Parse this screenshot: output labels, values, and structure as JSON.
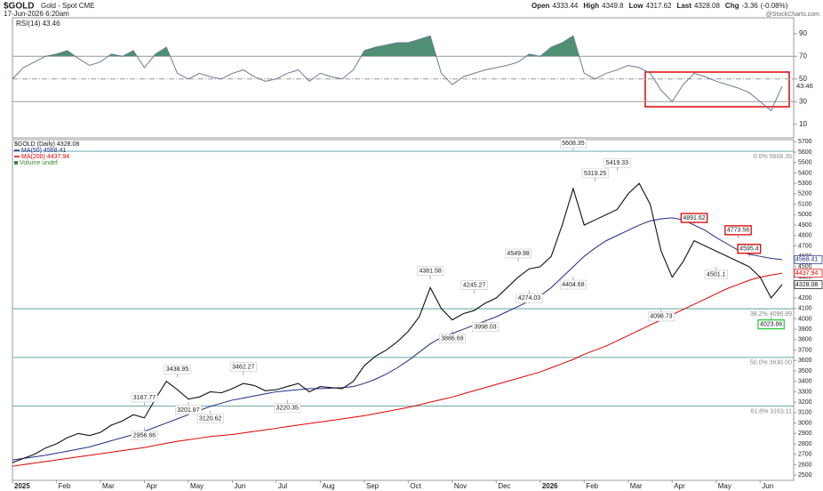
{
  "header": {
    "symbol": "$GOLD",
    "name": "Gold - Spot CME",
    "date": "17-Jun-2026 6:20am",
    "quote": [
      {
        "label": "Open",
        "value": 4333.44
      },
      {
        "label": "High",
        "value": 4349.8
      },
      {
        "label": "Low",
        "value": 4317.62
      },
      {
        "label": "Last",
        "value": 4328.08
      },
      {
        "label": "Chg",
        "value": -3.36
      }
    ],
    "change_pct": "(-0.08%)",
    "watermark": "@StockCharts.com"
  },
  "chart_data": [
    {
      "type": "line",
      "name": "RSI(14)",
      "color": "#6b7a94",
      "fill_above": 70,
      "fill_color": "#4f8f74",
      "values": [
        50,
        60,
        65,
        70,
        72,
        75,
        68,
        62,
        65,
        72,
        70,
        75,
        60,
        72,
        78,
        55,
        50,
        55,
        52,
        50,
        55,
        58,
        52,
        48,
        50,
        55,
        58,
        48,
        55,
        52,
        50,
        58,
        75,
        78,
        80,
        82,
        82,
        85,
        88,
        55,
        45,
        52,
        55,
        58,
        60,
        62,
        65,
        72,
        70,
        78,
        82,
        88,
        55,
        50,
        55,
        58,
        62,
        60,
        55,
        40,
        30,
        45,
        55,
        52,
        48,
        45,
        42,
        38,
        30,
        22,
        43.46
      ],
      "ylim": [
        -2,
        104
      ],
      "yticks": [
        10,
        30,
        50,
        70,
        90
      ],
      "reference_lines": [
        70,
        50,
        30
      ]
    },
    {
      "type": "line",
      "title": "$GOLD (Daily)",
      "categories": [
        "2025",
        null,
        null,
        null,
        "Feb",
        null,
        null,
        null,
        "Mar",
        null,
        null,
        null,
        "Apr",
        null,
        null,
        null,
        "May",
        null,
        null,
        null,
        "Jun",
        null,
        null,
        null,
        "Jul",
        null,
        null,
        null,
        "Aug",
        null,
        null,
        null,
        "Sep",
        null,
        null,
        null,
        "Oct",
        null,
        null,
        null,
        "Nov",
        null,
        null,
        null,
        "Dec",
        null,
        null,
        null,
        "2026",
        null,
        null,
        null,
        "Feb",
        null,
        null,
        null,
        "Mar",
        null,
        null,
        null,
        "Apr",
        null,
        null,
        null,
        "May",
        null,
        null,
        null,
        "Jun",
        null,
        null
      ],
      "series": [
        {
          "name": "$GOLD (Daily)",
          "color": "#111111",
          "values": [
            2620,
            2660,
            2700,
            2760,
            2800,
            2860,
            2900,
            2880,
            2910,
            2980,
            3020,
            3080,
            3050,
            3230,
            3400,
            3320,
            3230,
            3250,
            3300,
            3290,
            3330,
            3380,
            3360,
            3310,
            3320,
            3350,
            3380,
            3300,
            3350,
            3340,
            3330,
            3400,
            3550,
            3640,
            3700,
            3780,
            3880,
            4020,
            4300,
            4100,
            3990,
            4050,
            4080,
            4150,
            4200,
            4300,
            4400,
            4480,
            4500,
            4600,
            4900,
            5250,
            4900,
            4950,
            5000,
            5050,
            5200,
            5300,
            5100,
            4650,
            4400,
            4550,
            4750,
            4700,
            4650,
            4600,
            4550,
            4500,
            4400,
            4200,
            4328.08
          ]
        },
        {
          "name": "MA(50)",
          "color": "#1f2d86",
          "values": [
            2645,
            2660,
            2675,
            2690,
            2710,
            2730,
            2750,
            2770,
            2800,
            2830,
            2860,
            2890,
            2920,
            2960,
            3000,
            3040,
            3080,
            3120,
            3160,
            3190,
            3220,
            3240,
            3260,
            3280,
            3300,
            3310,
            3320,
            3330,
            3330,
            3335,
            3340,
            3350,
            3380,
            3420,
            3470,
            3530,
            3600,
            3680,
            3760,
            3820,
            3860,
            3900,
            3940,
            3980,
            4020,
            4070,
            4120,
            4170,
            4220,
            4300,
            4400,
            4500,
            4600,
            4680,
            4750,
            4800,
            4850,
            4900,
            4940,
            4960,
            4970,
            4950,
            4900,
            4850,
            4780,
            4720,
            4660,
            4620,
            4600,
            4580,
            4568.41
          ]
        },
        {
          "name": "MA(200)",
          "color": "#e00000",
          "values": [
            2585,
            2600,
            2615,
            2630,
            2645,
            2660,
            2675,
            2690,
            2705,
            2720,
            2735,
            2750,
            2765,
            2785,
            2805,
            2825,
            2840,
            2855,
            2870,
            2880,
            2890,
            2905,
            2920,
            2935,
            2950,
            2965,
            2980,
            2995,
            3010,
            3025,
            3040,
            3055,
            3070,
            3090,
            3110,
            3130,
            3150,
            3175,
            3200,
            3225,
            3250,
            3280,
            3310,
            3340,
            3370,
            3400,
            3430,
            3460,
            3490,
            3530,
            3570,
            3610,
            3660,
            3700,
            3740,
            3790,
            3840,
            3890,
            3940,
            3990,
            4040,
            4090,
            4140,
            4190,
            4240,
            4290,
            4330,
            4370,
            4400,
            4420,
            4437.94
          ]
        }
      ],
      "legend_extra": "Volume undef",
      "ylim": [
        2450,
        5720
      ],
      "yticks": [
        2500,
        2600,
        2700,
        2800,
        2900,
        3000,
        3100,
        3200,
        3300,
        3400,
        3500,
        3600,
        3700,
        3800,
        3900,
        4000,
        4100,
        4200,
        4300,
        4400,
        4500,
        4600,
        4700,
        4800,
        4900,
        5000,
        5100,
        5200,
        5300,
        5400,
        5500,
        5600,
        5700
      ],
      "fib_color": "#7fb3b3",
      "fib_levels": [
        {
          "label": "0.0% 5608.35",
          "value": 5608.35
        },
        {
          "label": "38.2% 4096.89",
          "value": 4096.89
        },
        {
          "label": "50.0% 3630.00",
          "value": 3630
        },
        {
          "label": "61.8% 3163.11",
          "value": 3163.11
        }
      ],
      "annotations": [
        {
          "index": 12,
          "value": 3167.77
        },
        {
          "index": 12,
          "value": 2956.66
        },
        {
          "index": 15,
          "value": 3438.95
        },
        {
          "index": 16,
          "value": 3201.87
        },
        {
          "index": 18,
          "value": 3120.62
        },
        {
          "index": 21,
          "value": 3462.27
        },
        {
          "index": 25,
          "value": 3220.35
        },
        {
          "index": 38,
          "value": 4381.58
        },
        {
          "index": 40,
          "value": 3886.69
        },
        {
          "index": 43,
          "value": 3998.03
        },
        {
          "index": 42,
          "value": 4245.27
        },
        {
          "index": 47,
          "value": 4274.03
        },
        {
          "index": 46,
          "value": 4549.98
        },
        {
          "index": 51,
          "value": 5608.35
        },
        {
          "index": 51,
          "value": 4404.68
        },
        {
          "index": 53,
          "value": 5319.25
        },
        {
          "index": 55,
          "value": 5419.33
        },
        {
          "index": 59,
          "value": 4098.73
        },
        {
          "index": 62,
          "value": 4891.62,
          "box": "#e00000"
        },
        {
          "index": 64,
          "value": 4501.1
        },
        {
          "index": 66,
          "value": 4773.56,
          "box": "#e00000"
        },
        {
          "index": 67,
          "value": 4595.4,
          "box": "#e00000"
        },
        {
          "index": 69,
          "value": 4023.86,
          "box": "#2ecc40"
        }
      ]
    }
  ]
}
